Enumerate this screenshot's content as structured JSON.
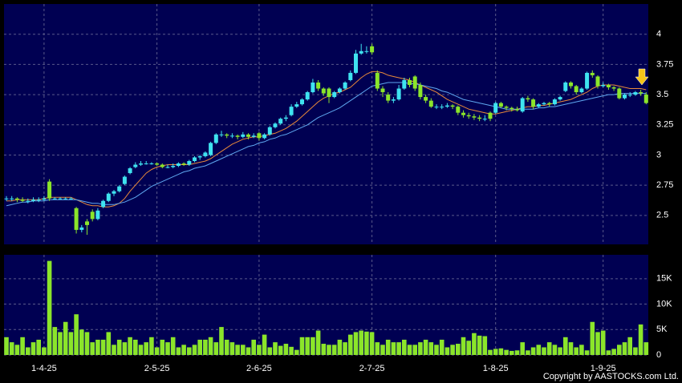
{
  "chart_data": {
    "type": "candlestick",
    "categories": [
      null,
      null,
      null,
      null,
      null,
      null,
      null,
      "1-4-25",
      null,
      null,
      null,
      null,
      null,
      null,
      null,
      null,
      null,
      null,
      null,
      null,
      null,
      null,
      null,
      null,
      null,
      null,
      null,
      null,
      "2-5-25",
      null,
      null,
      null,
      null,
      null,
      null,
      null,
      null,
      null,
      null,
      null,
      null,
      null,
      null,
      null,
      null,
      null,
      null,
      "2-6-25",
      null,
      null,
      null,
      null,
      null,
      null,
      null,
      null,
      null,
      null,
      null,
      null,
      null,
      null,
      null,
      null,
      null,
      null,
      null,
      null,
      "2-7-25",
      null,
      null,
      null,
      null,
      null,
      null,
      null,
      null,
      null,
      null,
      null,
      null,
      null,
      null,
      null,
      null,
      null,
      null,
      null,
      null,
      null,
      null,
      "1-8-25",
      null,
      null,
      null,
      null,
      null,
      null,
      null,
      null,
      null,
      null,
      null,
      null,
      null,
      null,
      null,
      null,
      null,
      null,
      null,
      "1-9-25",
      null,
      null,
      null,
      null,
      null,
      null,
      null,
      null,
      null,
      null
    ],
    "ohlc": [
      [
        2.64,
        2.66,
        2.62,
        2.64
      ],
      [
        2.64,
        2.66,
        2.62,
        2.64
      ],
      [
        2.64,
        2.65,
        2.61,
        2.63
      ],
      [
        2.63,
        2.65,
        2.61,
        2.62
      ],
      [
        2.62,
        2.64,
        2.6,
        2.62
      ],
      [
        2.62,
        2.65,
        2.61,
        2.63
      ],
      [
        2.63,
        2.65,
        2.61,
        2.63
      ],
      [
        2.63,
        2.66,
        2.62,
        2.64
      ],
      [
        2.78,
        2.8,
        2.62,
        2.64
      ],
      [
        2.64,
        2.65,
        2.63,
        2.64
      ],
      [
        2.64,
        2.65,
        2.63,
        2.64
      ],
      [
        2.64,
        2.65,
        2.63,
        2.64
      ],
      [
        2.64,
        2.65,
        2.63,
        2.64
      ],
      [
        2.56,
        2.57,
        2.35,
        2.38
      ],
      [
        2.38,
        2.42,
        2.36,
        2.4
      ],
      [
        2.45,
        2.47,
        2.34,
        2.42
      ],
      [
        2.53,
        2.55,
        2.45,
        2.47
      ],
      [
        2.47,
        2.56,
        2.46,
        2.54
      ],
      [
        2.57,
        2.63,
        2.56,
        2.62
      ],
      [
        2.62,
        2.69,
        2.61,
        2.68
      ],
      [
        2.68,
        2.71,
        2.66,
        2.7
      ],
      [
        2.7,
        2.75,
        2.69,
        2.74
      ],
      [
        2.76,
        2.83,
        2.75,
        2.82
      ],
      [
        2.85,
        2.9,
        2.84,
        2.89
      ],
      [
        2.9,
        2.94,
        2.89,
        2.92
      ],
      [
        2.92,
        2.95,
        2.91,
        2.93
      ],
      [
        2.93,
        2.95,
        2.92,
        2.93
      ],
      [
        2.93,
        2.94,
        2.92,
        2.93
      ],
      [
        2.93,
        2.94,
        2.91,
        2.92
      ],
      [
        2.92,
        2.93,
        2.89,
        2.9
      ],
      [
        2.9,
        2.92,
        2.89,
        2.9
      ],
      [
        2.9,
        2.93,
        2.89,
        2.91
      ],
      [
        2.91,
        2.94,
        2.9,
        2.93
      ],
      [
        2.93,
        2.94,
        2.91,
        2.92
      ],
      [
        2.92,
        2.96,
        2.91,
        2.95
      ],
      [
        2.95,
        2.99,
        2.94,
        2.98
      ],
      [
        2.98,
        3.0,
        2.96,
        2.99
      ],
      [
        2.99,
        3.03,
        2.98,
        3.02
      ],
      [
        3.0,
        3.11,
        2.99,
        3.1
      ],
      [
        3.1,
        3.18,
        3.09,
        3.17
      ],
      [
        3.17,
        3.2,
        3.15,
        3.17
      ],
      [
        3.17,
        3.18,
        3.14,
        3.16
      ],
      [
        3.16,
        3.18,
        3.14,
        3.16
      ],
      [
        3.16,
        3.17,
        3.13,
        3.15
      ],
      [
        3.15,
        3.19,
        3.14,
        3.17
      ],
      [
        3.17,
        3.18,
        3.13,
        3.15
      ],
      [
        3.15,
        3.18,
        3.14,
        3.16
      ],
      [
        3.18,
        3.19,
        3.12,
        3.14
      ],
      [
        3.14,
        3.18,
        3.13,
        3.17
      ],
      [
        3.17,
        3.24,
        3.16,
        3.23
      ],
      [
        3.23,
        3.27,
        3.22,
        3.26
      ],
      [
        3.26,
        3.31,
        3.25,
        3.3
      ],
      [
        3.3,
        3.33,
        3.28,
        3.31
      ],
      [
        3.33,
        3.42,
        3.32,
        3.4
      ],
      [
        3.4,
        3.44,
        3.39,
        3.42
      ],
      [
        3.42,
        3.47,
        3.41,
        3.46
      ],
      [
        3.46,
        3.53,
        3.45,
        3.52
      ],
      [
        3.52,
        3.63,
        3.51,
        3.6
      ],
      [
        3.6,
        3.62,
        3.53,
        3.55
      ],
      [
        3.55,
        3.56,
        3.49,
        3.51
      ],
      [
        3.55,
        3.56,
        3.43,
        3.48
      ],
      [
        3.48,
        3.53,
        3.47,
        3.52
      ],
      [
        3.52,
        3.56,
        3.51,
        3.55
      ],
      [
        3.55,
        3.61,
        3.54,
        3.6
      ],
      [
        3.62,
        3.7,
        3.61,
        3.68
      ],
      [
        3.68,
        3.87,
        3.67,
        3.84
      ],
      [
        3.84,
        3.92,
        3.83,
        3.86
      ],
      [
        3.86,
        3.9,
        3.84,
        3.86
      ],
      [
        3.9,
        3.92,
        3.83,
        3.85
      ],
      [
        3.68,
        3.7,
        3.53,
        3.55
      ],
      [
        3.55,
        3.57,
        3.48,
        3.52
      ],
      [
        3.5,
        3.52,
        3.43,
        3.45
      ],
      [
        3.45,
        3.48,
        3.43,
        3.46
      ],
      [
        3.46,
        3.58,
        3.45,
        3.55
      ],
      [
        3.55,
        3.64,
        3.54,
        3.62
      ],
      [
        3.62,
        3.64,
        3.56,
        3.58
      ],
      [
        3.65,
        3.66,
        3.53,
        3.55
      ],
      [
        3.58,
        3.6,
        3.46,
        3.48
      ],
      [
        3.48,
        3.5,
        3.43,
        3.45
      ],
      [
        3.45,
        3.47,
        3.39,
        3.4
      ],
      [
        3.4,
        3.42,
        3.38,
        3.4
      ],
      [
        3.4,
        3.42,
        3.38,
        3.4
      ],
      [
        3.4,
        3.43,
        3.39,
        3.41
      ],
      [
        3.41,
        3.42,
        3.38,
        3.4
      ],
      [
        3.4,
        3.41,
        3.33,
        3.35
      ],
      [
        3.35,
        3.37,
        3.31,
        3.33
      ],
      [
        3.33,
        3.35,
        3.3,
        3.32
      ],
      [
        3.32,
        3.34,
        3.29,
        3.31
      ],
      [
        3.31,
        3.33,
        3.28,
        3.3
      ],
      [
        3.3,
        3.33,
        3.28,
        3.3
      ],
      [
        3.35,
        3.36,
        3.28,
        3.3
      ],
      [
        3.35,
        3.44,
        3.34,
        3.43
      ],
      [
        3.43,
        3.44,
        3.39,
        3.4
      ],
      [
        3.4,
        3.41,
        3.37,
        3.39
      ],
      [
        3.39,
        3.4,
        3.36,
        3.38
      ],
      [
        3.38,
        3.4,
        3.36,
        3.37
      ],
      [
        3.36,
        3.48,
        3.35,
        3.47
      ],
      [
        3.47,
        3.49,
        3.44,
        3.46
      ],
      [
        3.46,
        3.47,
        3.38,
        3.4
      ],
      [
        3.4,
        3.43,
        3.39,
        3.42
      ],
      [
        3.42,
        3.44,
        3.41,
        3.43
      ],
      [
        3.43,
        3.44,
        3.4,
        3.42
      ],
      [
        3.42,
        3.47,
        3.41,
        3.46
      ],
      [
        3.46,
        3.49,
        3.45,
        3.48
      ],
      [
        3.53,
        3.61,
        3.52,
        3.6
      ],
      [
        3.6,
        3.61,
        3.55,
        3.57
      ],
      [
        3.57,
        3.58,
        3.5,
        3.52
      ],
      [
        3.52,
        3.56,
        3.51,
        3.55
      ],
      [
        3.55,
        3.69,
        3.54,
        3.68
      ],
      [
        3.68,
        3.7,
        3.64,
        3.66
      ],
      [
        3.65,
        3.66,
        3.55,
        3.57
      ],
      [
        3.57,
        3.6,
        3.56,
        3.58
      ],
      [
        3.58,
        3.59,
        3.54,
        3.56
      ],
      [
        3.56,
        3.57,
        3.53,
        3.55
      ],
      [
        3.55,
        3.56,
        3.46,
        3.47
      ],
      [
        3.47,
        3.51,
        3.46,
        3.5
      ],
      [
        3.5,
        3.52,
        3.48,
        3.5
      ],
      [
        3.5,
        3.53,
        3.49,
        3.52
      ],
      [
        3.52,
        3.54,
        3.49,
        3.51
      ],
      [
        3.5,
        3.52,
        3.42,
        3.43
      ]
    ],
    "up_color": "#3fe3f0",
    "down_color": "#8be52a",
    "ma_lines": [
      {
        "color": "#e8893a",
        "values": [
          2.62,
          2.62,
          2.63,
          2.63,
          2.63,
          2.63,
          2.63,
          2.64,
          2.65,
          2.65,
          2.65,
          2.65,
          2.65,
          2.63,
          2.61,
          2.59,
          2.58,
          2.58,
          2.57,
          2.57,
          2.58,
          2.6,
          2.64,
          2.7,
          2.75,
          2.8,
          2.85,
          2.88,
          2.9,
          2.91,
          2.92,
          2.92,
          2.92,
          2.92,
          2.92,
          2.93,
          2.94,
          2.95,
          2.97,
          3.0,
          3.03,
          3.06,
          3.09,
          3.11,
          3.13,
          3.14,
          3.15,
          3.15,
          3.16,
          3.17,
          3.18,
          3.2,
          3.22,
          3.25,
          3.28,
          3.32,
          3.36,
          3.4,
          3.44,
          3.47,
          3.49,
          3.51,
          3.52,
          3.54,
          3.56,
          3.6,
          3.64,
          3.67,
          3.69,
          3.69,
          3.68,
          3.66,
          3.65,
          3.64,
          3.63,
          3.62,
          3.6,
          3.58,
          3.56,
          3.54,
          3.52,
          3.49,
          3.46,
          3.44,
          3.42,
          3.4,
          3.38,
          3.37,
          3.36,
          3.35,
          3.34,
          3.34,
          3.35,
          3.36,
          3.37,
          3.38,
          3.39,
          3.4,
          3.4,
          3.41,
          3.41,
          3.42,
          3.43,
          3.44,
          3.45,
          3.46,
          3.48,
          3.5,
          3.52,
          3.55,
          3.57,
          3.58,
          3.58,
          3.58,
          3.57,
          3.56,
          3.55,
          3.55,
          3.55,
          3.54
        ]
      },
      {
        "color": "#5fa8f0",
        "values": [
          2.58,
          2.59,
          2.6,
          2.61,
          2.61,
          2.62,
          2.62,
          2.62,
          2.63,
          2.63,
          2.63,
          2.63,
          2.63,
          2.63,
          2.62,
          2.61,
          2.6,
          2.6,
          2.59,
          2.59,
          2.59,
          2.6,
          2.61,
          2.63,
          2.65,
          2.68,
          2.71,
          2.74,
          2.76,
          2.78,
          2.8,
          2.82,
          2.84,
          2.86,
          2.87,
          2.89,
          2.9,
          2.91,
          2.93,
          2.95,
          2.97,
          2.99,
          3.01,
          3.03,
          3.05,
          3.07,
          3.08,
          3.1,
          3.11,
          3.13,
          3.14,
          3.16,
          3.17,
          3.19,
          3.21,
          3.23,
          3.25,
          3.28,
          3.31,
          3.33,
          3.35,
          3.37,
          3.39,
          3.42,
          3.45,
          3.48,
          3.51,
          3.54,
          3.57,
          3.58,
          3.59,
          3.6,
          3.6,
          3.6,
          3.6,
          3.59,
          3.59,
          3.58,
          3.57,
          3.56,
          3.55,
          3.53,
          3.52,
          3.5,
          3.48,
          3.46,
          3.45,
          3.44,
          3.43,
          3.42,
          3.41,
          3.4,
          3.39,
          3.38,
          3.38,
          3.38,
          3.38,
          3.38,
          3.38,
          3.39,
          3.39,
          3.4,
          3.4,
          3.41,
          3.42,
          3.43,
          3.44,
          3.45,
          3.46,
          3.47,
          3.48,
          3.49,
          3.5,
          3.5,
          3.51,
          3.51,
          3.51,
          3.51,
          3.51,
          3.51
        ]
      }
    ],
    "ylim": [
      2.26,
      4.25
    ],
    "yticks": [
      2.5,
      2.75,
      3,
      3.25,
      3.5,
      3.75,
      4
    ],
    "grid": true,
    "volume": {
      "color": "#8be52a",
      "values": [
        3500,
        2500,
        2000,
        3500,
        1500,
        2500,
        3000,
        1500,
        18500,
        5500,
        4500,
        6500,
        4500,
        8000,
        5000,
        4500,
        2500,
        3000,
        3000,
        4500,
        2000,
        3000,
        2500,
        3500,
        3000,
        2000,
        2500,
        3500,
        1500,
        3000,
        2500,
        3500,
        1500,
        2000,
        1500,
        2000,
        3000,
        3000,
        3500,
        2500,
        5500,
        3000,
        2500,
        2000,
        2000,
        1500,
        3000,
        2000,
        4000,
        1500,
        2500,
        1800,
        2200,
        1600,
        1000,
        3500,
        3500,
        3500,
        4800,
        2200,
        2000,
        2000,
        3000,
        2500,
        4000,
        4500,
        4800,
        4600,
        4500,
        2500,
        2000,
        3000,
        2500,
        2500,
        3000,
        2000,
        2000,
        2500,
        3000,
        2500,
        2000,
        3000,
        1500,
        2000,
        2200,
        3500,
        2800,
        4300,
        3800,
        3700,
        1000,
        1200,
        1300,
        1000,
        800,
        900,
        2500,
        900,
        1500,
        2000,
        1500,
        2500,
        2000,
        1500,
        3500,
        2500,
        1500,
        2000,
        900,
        6500,
        4500,
        4800,
        900,
        1200,
        2000,
        2500,
        3500,
        1500,
        6000,
        2500
      ],
      "ylim": [
        0,
        19700
      ],
      "yticks": [
        0,
        {
          "value": 5000,
          "label": "5K"
        },
        {
          "value": 10000,
          "label": "10K"
        },
        {
          "value": 15000,
          "label": "15K"
        }
      ]
    },
    "copyright": "Copyright by AASTOCKS.com Ltd."
  }
}
